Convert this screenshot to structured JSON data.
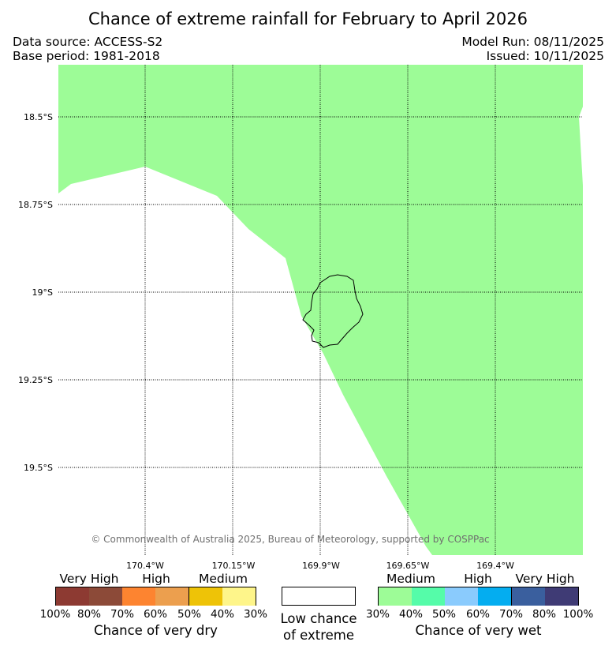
{
  "title": "Chance of extreme rainfall for February to April 2026",
  "meta": {
    "data_source": "Data source: ACCESS-S2",
    "base_period": "Base period: 1981-2018",
    "model_run": "Model Run: 08/11/2025",
    "issued": "Issued: 10/11/2025"
  },
  "map": {
    "lat_labels": [
      "18.5°S",
      "18.75°S",
      "19°S",
      "19.25°S",
      "19.5°S"
    ],
    "lon_labels": [
      "170.4°W",
      "170.15°W",
      "169.9°W",
      "169.65°W",
      "169.4°W"
    ],
    "wet_region_color": "#9dfc97",
    "region_chance_category": "Medium chance of very wet (30%–40%)",
    "copyright": "© Commonwealth of Australia 2025, Bureau of Meteorology, supported by COSPPac"
  },
  "legend": {
    "dry": {
      "categories": [
        "Very High",
        "High",
        "Medium"
      ],
      "colors": [
        "#8d3a32",
        "#8c4a38",
        "#fd8430",
        "#ec9f4e",
        "#eec307",
        "#fef58a"
      ],
      "ticks": [
        "100%",
        "80%",
        "70%",
        "60%",
        "50%",
        "40%",
        "30%"
      ],
      "caption": "Chance of very dry"
    },
    "low": {
      "color": "#ffffff",
      "caption_line1": "Low chance",
      "caption_line2": "of extreme"
    },
    "wet": {
      "categories": [
        "Medium",
        "High",
        "Very High"
      ],
      "colors": [
        "#9dfc97",
        "#55fca9",
        "#8acbfd",
        "#04adf0",
        "#3a5f9e",
        "#3f3b75"
      ],
      "ticks": [
        "30%",
        "40%",
        "50%",
        "60%",
        "70%",
        "80%",
        "100%"
      ],
      "caption": "Chance of very wet"
    }
  }
}
